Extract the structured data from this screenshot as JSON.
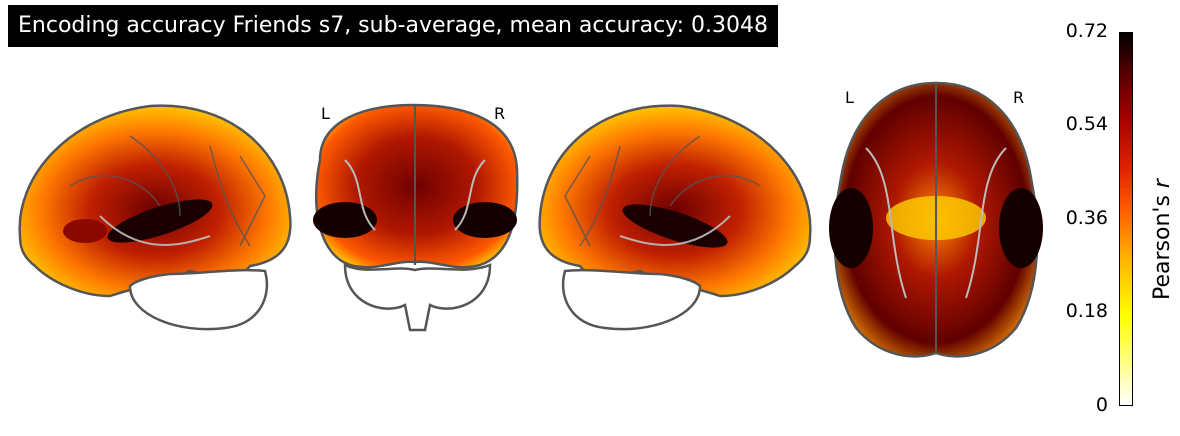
{
  "title": "Encoding accuracy Friends s7, sub-average, mean accuracy: 0.3048",
  "views": {
    "coronal": {
      "left_label": "L",
      "right_label": "R"
    },
    "axial": {
      "left_label": "L",
      "right_label": "R"
    }
  },
  "colorbar": {
    "ticks": [
      "0.72",
      "0.54",
      "0.36",
      "0.18",
      "0"
    ],
    "label_main": "Pearson's ",
    "label_var": "r",
    "colormap": "cold_hot / afmhot",
    "max": 0.72,
    "min": 0
  }
}
